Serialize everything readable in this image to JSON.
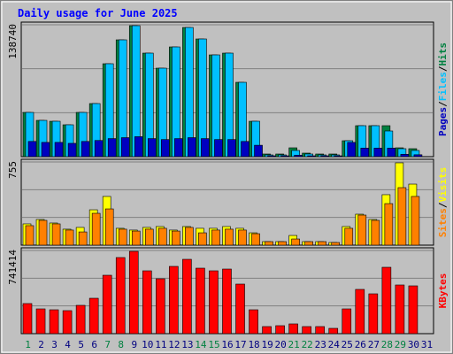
{
  "title": "Daily usage for June 2025",
  "legend_separator": "/",
  "chart_data": [
    {
      "type": "bar",
      "ylim": [
        0,
        138740
      ],
      "yticks": [
        138740
      ],
      "series": [
        {
          "name": "Hits",
          "color": "#008040",
          "values": [
            46550,
            38170,
            37240,
            33520,
            46550,
            55860,
            97760,
            122900,
            137800,
            108930,
            93100,
            115450,
            135930,
            123830,
            107070,
            108930,
            78210,
            37240,
            2790,
            2790,
            9310,
            3720,
            2790,
            2790,
            16760,
            32590,
            32590,
            32590,
            9310,
            8380,
            null
          ]
        },
        {
          "name": "Files",
          "color": "#00c0ff",
          "values": [
            46550,
            38170,
            37240,
            33520,
            46550,
            55860,
            97760,
            122900,
            137800,
            108930,
            93100,
            115450,
            135930,
            123830,
            107070,
            108930,
            78210,
            37240,
            1860,
            1860,
            6520,
            2790,
            1860,
            1860,
            16760,
            32590,
            32590,
            27000,
            8380,
            6520,
            null
          ]
        },
        {
          "name": "Pages",
          "color": "#0000c0",
          "values": [
            16000,
            15000,
            15000,
            14000,
            16000,
            17000,
            19000,
            20000,
            21000,
            19000,
            18000,
            19000,
            20000,
            19000,
            18000,
            18000,
            16000,
            12000,
            900,
            900,
            1500,
            900,
            900,
            900,
            15000,
            9000,
            9000,
            9000,
            2500,
            2000,
            null
          ]
        }
      ]
    },
    {
      "type": "bar",
      "ylim": [
        0,
        755
      ],
      "yticks": [
        755
      ],
      "series": [
        {
          "name": "Visits",
          "color": "#ffff00",
          "values": [
            193,
            233,
            201,
            145,
            161,
            321,
            442,
            153,
            137,
            161,
            169,
            137,
            169,
            153,
            153,
            169,
            153,
            112,
            32,
            32,
            88,
            32,
            32,
            24,
            169,
            281,
            233,
            458,
            747,
            554,
            null
          ]
        },
        {
          "name": "Sites",
          "color": "#ff8000",
          "values": [
            177,
            225,
            193,
            137,
            120,
            289,
            329,
            145,
            128,
            145,
            153,
            128,
            161,
            112,
            137,
            145,
            137,
            104,
            32,
            32,
            56,
            32,
            32,
            24,
            153,
            273,
            225,
            377,
            522,
            442,
            null
          ]
        }
      ]
    },
    {
      "type": "bar",
      "ylim": [
        0,
        741414
      ],
      "yticks": [
        741414
      ],
      "series": [
        {
          "name": "KBytes",
          "color": "#ff0000",
          "values": [
            268200,
            220800,
            212900,
            205100,
            252400,
            315500,
            520500,
            678300,
            733500,
            560000,
            489000,
            599400,
            662500,
            583600,
            560000,
            575700,
            441700,
            212900,
            63100,
            71000,
            86800,
            63100,
            63100,
            47300,
            220800,
            394400,
            354900,
            591500,
            433800,
            425900,
            null
          ]
        }
      ],
      "categories": [
        "1",
        "2",
        "3",
        "4",
        "5",
        "6",
        "7",
        "8",
        "9",
        "10",
        "11",
        "12",
        "13",
        "14",
        "15",
        "16",
        "17",
        "18",
        "19",
        "20",
        "21",
        "22",
        "23",
        "24",
        "25",
        "26",
        "27",
        "28",
        "29",
        "30",
        "31"
      ],
      "category_colors": [
        "#008040",
        "#000080",
        "#000080",
        "#000080",
        "#000080",
        "#000080",
        "#008040",
        "#008040",
        "#000080",
        "#000080",
        "#000080",
        "#000080",
        "#000080",
        "#008040",
        "#008040",
        "#000080",
        "#000080",
        "#000080",
        "#000080",
        "#000080",
        "#008040",
        "#008040",
        "#000080",
        "#000080",
        "#000080",
        "#000080",
        "#000080",
        "#008040",
        "#008040",
        "#000080",
        "#000080"
      ]
    }
  ]
}
